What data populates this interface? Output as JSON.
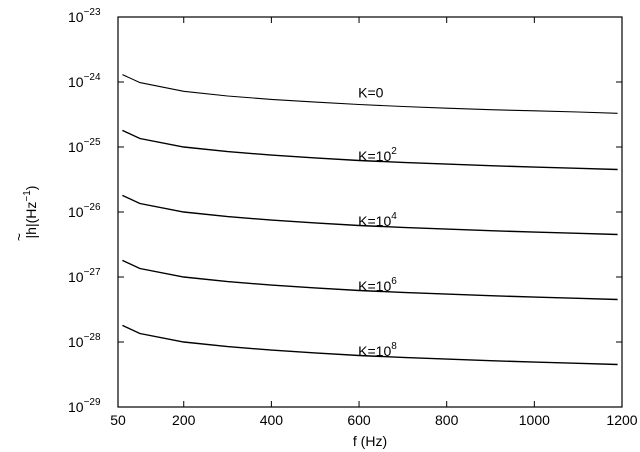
{
  "chart_data": {
    "type": "line",
    "title": "",
    "xlabel": "f (Hz)",
    "ylabel": {
      "quantity": "h",
      "unit_open": "|(Hz",
      "unit_exp": "−1",
      "unit_close": ")"
    },
    "x_scale": "linear",
    "y_scale": "log",
    "xlim": [
      50,
      1200
    ],
    "ylim_exponent": [
      -29,
      -23
    ],
    "x_ticks": [
      {
        "value": 50,
        "label": "50"
      },
      {
        "value": 200,
        "label": "200"
      },
      {
        "value": 400,
        "label": "400"
      },
      {
        "value": 600,
        "label": "600"
      },
      {
        "value": 800,
        "label": "800"
      },
      {
        "value": 1000,
        "label": "1000"
      },
      {
        "value": 1200,
        "label": "1200"
      }
    ],
    "y_ticks": [
      {
        "exponent": -23,
        "base": "10",
        "exp": "−23"
      },
      {
        "exponent": -24,
        "base": "10",
        "exp": "−24"
      },
      {
        "exponent": -25,
        "base": "10",
        "exp": "−25"
      },
      {
        "exponent": -26,
        "base": "10",
        "exp": "−26"
      },
      {
        "exponent": -27,
        "base": "10",
        "exp": "−27"
      },
      {
        "exponent": -28,
        "base": "10",
        "exp": "−28"
      },
      {
        "exponent": -29,
        "base": "10",
        "exp": "−29"
      }
    ],
    "grid": false,
    "legend": "none",
    "series": [
      {
        "label_base": "K=0",
        "label_exp": "",
        "label_x": 598,
        "label_y": 5.8e-25,
        "x": [
          60,
          100,
          200,
          300,
          400,
          500,
          600,
          700,
          800,
          900,
          1000,
          1100,
          1190
        ],
        "y": [
          1.3e-24,
          9.8e-25,
          7.2e-25,
          6.1e-25,
          5.4e-25,
          4.9e-25,
          4.5e-25,
          4.2e-25,
          3.95e-25,
          3.75e-25,
          3.6e-25,
          3.45e-25,
          3.3e-25
        ]
      },
      {
        "label_base": "K=10",
        "label_exp": "2",
        "label_x": 598,
        "label_y": 6.1e-26,
        "x": [
          60,
          100,
          200,
          300,
          400,
          500,
          600,
          700,
          800,
          900,
          1000,
          1100,
          1190
        ],
        "y": [
          1.8e-25,
          1.35e-25,
          1e-25,
          8.5e-26,
          7.5e-26,
          6.8e-26,
          6.2e-26,
          5.8e-26,
          5.45e-26,
          5.15e-26,
          4.9e-26,
          4.7e-26,
          4.5e-26
        ]
      },
      {
        "label_base": "K=10",
        "label_exp": "4",
        "label_x": 598,
        "label_y": 6.1e-27,
        "x": [
          60,
          100,
          200,
          300,
          400,
          500,
          600,
          700,
          800,
          900,
          1000,
          1100,
          1190
        ],
        "y": [
          1.8e-26,
          1.35e-26,
          1e-26,
          8.5e-27,
          7.5e-27,
          6.8e-27,
          6.2e-27,
          5.8e-27,
          5.45e-27,
          5.15e-27,
          4.9e-27,
          4.7e-27,
          4.5e-27
        ]
      },
      {
        "label_base": "K=10",
        "label_exp": "6",
        "label_x": 598,
        "label_y": 6.1e-28,
        "x": [
          60,
          100,
          200,
          300,
          400,
          500,
          600,
          700,
          800,
          900,
          1000,
          1100,
          1190
        ],
        "y": [
          1.8e-27,
          1.35e-27,
          1e-27,
          8.5e-28,
          7.5e-28,
          6.8e-28,
          6.2e-28,
          5.8e-28,
          5.45e-28,
          5.15e-28,
          4.9e-28,
          4.7e-28,
          4.5e-28
        ]
      },
      {
        "label_base": "K=10",
        "label_exp": "8",
        "label_x": 598,
        "label_y": 6.1e-29,
        "x": [
          60,
          100,
          200,
          300,
          400,
          500,
          600,
          700,
          800,
          900,
          1000,
          1100,
          1190
        ],
        "y": [
          1.8e-28,
          1.35e-28,
          1e-28,
          8.5e-29,
          7.5e-29,
          6.8e-29,
          6.2e-29,
          5.8e-29,
          5.45e-29,
          5.15e-29,
          4.9e-29,
          4.7e-29,
          4.5e-29
        ]
      }
    ]
  }
}
